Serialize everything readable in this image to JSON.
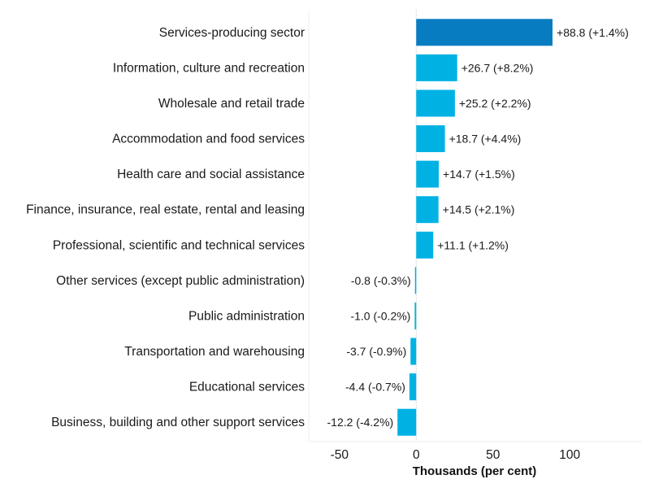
{
  "chart_data": {
    "type": "bar",
    "orientation": "horizontal",
    "categories": [
      "Services-producing sector",
      "Information, culture and recreation",
      "Wholesale and retail trade",
      "Accommodation and food services",
      "Health care and social assistance",
      "Finance, insurance, real estate, rental and leasing",
      "Professional, scientific and technical services",
      "Other services (except public administration)",
      "Public administration",
      "Transportation and warehousing",
      "Educational services",
      "Business, building and other support services"
    ],
    "values": [
      88.8,
      26.7,
      25.2,
      18.7,
      14.7,
      14.5,
      11.1,
      -0.8,
      -1.0,
      -3.7,
      -4.4,
      -12.2
    ],
    "data_labels": [
      "+88.8 (+1.4%)",
      "+26.7 (+8.2%)",
      "+25.2 (+2.2%)",
      "+18.7 (+4.4%)",
      "+14.7 (+1.5%)",
      "+14.5 (+2.1%)",
      "+11.1 (+1.2%)",
      "-0.8 (-0.3%)",
      "-1.0 (-0.2%)",
      "-3.7 (-0.9%)",
      "-4.4 (-0.7%)",
      "-12.2 (-4.2%)"
    ],
    "xlabel": "Thousands (per cent)",
    "xticks": [
      "-50",
      "0",
      "50",
      "100"
    ],
    "xtick_values": [
      -50,
      0,
      50,
      100
    ],
    "xlim": [
      -70,
      147
    ],
    "grid": false,
    "colors": {
      "highlight": "#077CC0",
      "bar": "#00B2E3"
    }
  }
}
